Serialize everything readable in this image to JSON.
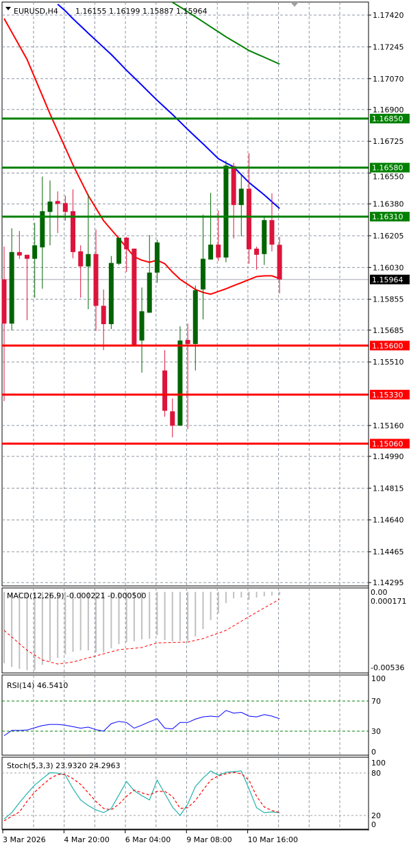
{
  "header": {
    "symbol": "EURUSD,H4",
    "ohlc": "1.16155 1.16199 1.15887 1.15964"
  },
  "colors": {
    "bull": "#006400",
    "bear": "#dc143c",
    "ma_red": "#ff0000",
    "ma_blue": "#0000ff",
    "ma_green": "#008000",
    "resistance": "#008000",
    "support": "#ff0000",
    "rsi": "#0000ff",
    "stoch_main": "#20b2aa",
    "stoch_signal": "#ff0000",
    "macd_hist": "#c0c0c0",
    "grid": "#8c96a0"
  },
  "chart_data": [
    {
      "type": "candlestick",
      "title": "EURUSD,H4",
      "ylim": [
        1.14277,
        1.17503
      ],
      "grid": true,
      "price_ticks": [
        "1.17420",
        "1.17245",
        "1.17070",
        "1.16900",
        "1.16725",
        "1.16550",
        "1.16380",
        "1.16205",
        "1.16030",
        "1.15855",
        "1.15685",
        "1.15510",
        "1.15160",
        "1.14990",
        "1.14815",
        "1.14640",
        "1.14465",
        "1.14295"
      ],
      "current_price": "1.15964",
      "levels": [
        {
          "value": "1.16850",
          "kind": "resistance"
        },
        {
          "value": "1.16580",
          "kind": "resistance"
        },
        {
          "value": "1.16310",
          "kind": "resistance"
        },
        {
          "value": "1.15600",
          "kind": "support"
        },
        {
          "value": "1.15330",
          "kind": "support"
        },
        {
          "value": "1.15060",
          "kind": "support"
        }
      ],
      "time_labels": [
        "3 Mar 2026",
        "4 Mar 20:00",
        "6 Mar 04:00",
        "9 Mar 08:00",
        "10 Mar 16:00"
      ],
      "candles": [
        [
          1.15965,
          1.16145,
          1.15294,
          1.15721
        ],
        [
          1.15721,
          1.16246,
          1.15684,
          1.16115
        ],
        [
          1.16115,
          1.16231,
          1.16078,
          1.16096
        ],
        [
          1.161,
          1.161,
          1.1574,
          1.16078
        ],
        [
          1.16078,
          1.16276,
          1.15864,
          1.16152
        ],
        [
          1.16141,
          1.16531,
          1.15913,
          1.1634
        ],
        [
          1.16336,
          1.16509,
          1.16152,
          1.16393
        ],
        [
          1.16396,
          1.16449,
          1.1622,
          1.16381
        ],
        [
          1.16385,
          1.16426,
          1.16288,
          1.16336
        ],
        [
          1.1634,
          1.1646,
          1.16081,
          1.16115
        ],
        [
          1.16119,
          1.16152,
          1.15864,
          1.16036
        ],
        [
          1.16036,
          1.16434,
          1.158,
          1.16104
        ],
        [
          1.16104,
          1.16239,
          1.1568,
          1.15819
        ],
        [
          1.15819,
          1.15909,
          1.15575,
          1.15718
        ],
        [
          1.15718,
          1.16093,
          1.15691,
          1.16055
        ],
        [
          1.16051,
          1.16194,
          1.16044,
          1.16194
        ],
        [
          1.16194,
          1.16198,
          1.16006,
          1.1613
        ],
        [
          1.16134,
          1.16134,
          1.15594,
          1.15601
        ],
        [
          1.15628,
          1.1592,
          1.15451,
          1.15789
        ],
        [
          1.15781,
          1.16209,
          1.15781,
          1.16002
        ],
        [
          1.16002,
          1.16183,
          1.15946,
          1.16168
        ],
        [
          1.15463,
          1.15575,
          1.15208,
          1.15241
        ],
        [
          1.15238,
          1.15309,
          1.15095,
          1.15159
        ],
        [
          1.15159,
          1.15706,
          1.15159,
          1.15628
        ],
        [
          1.15631,
          1.15721,
          1.1514,
          1.15609
        ],
        [
          1.15609,
          1.15931,
          1.15463,
          1.15905
        ],
        [
          1.15909,
          1.16321,
          1.15744,
          1.16078
        ],
        [
          1.16074,
          1.16441,
          1.16074,
          1.16156
        ],
        [
          1.16156,
          1.16344,
          1.16066,
          1.16085
        ],
        [
          1.16085,
          1.16618,
          1.16059,
          1.16591
        ],
        [
          1.16588,
          1.16606,
          1.1619,
          1.16374
        ],
        [
          1.16374,
          1.16539,
          1.16201,
          1.16464
        ],
        [
          1.16464,
          1.16659,
          1.16051,
          1.1613
        ],
        [
          1.16134,
          1.16145,
          1.16018,
          1.161
        ],
        [
          1.16104,
          1.16306,
          1.16044,
          1.16291
        ],
        [
          1.16291,
          1.16438,
          1.16119,
          1.16156
        ],
        [
          1.16155,
          1.16199,
          1.15887,
          1.15964
        ]
      ],
      "moving_averages": [
        {
          "color": "#ff0000",
          "values": [
            1.17401,
            1.17326,
            1.17251,
            1.17176,
            1.17076,
            1.16976,
            1.16876,
            1.16782,
            1.16689,
            1.16595,
            1.1651,
            1.16426,
            1.16357,
            1.16288,
            1.16239,
            1.1619,
            1.1614,
            1.16089,
            1.1607,
            1.16059,
            1.1607,
            1.16051,
            1.16005,
            1.15965,
            1.15937,
            1.15909,
            1.15893,
            1.15883,
            1.15898,
            1.15913,
            1.1593,
            1.15946,
            1.15963,
            1.1598,
            1.15984,
            1.15984,
            1.15969
          ]
        },
        {
          "color": "#0000ff",
          "values": [
            null,
            null,
            null,
            null,
            null,
            null,
            null,
            1.1748,
            1.17443,
            1.174,
            1.1736,
            1.1732,
            1.17281,
            1.17242,
            1.17203,
            1.1716,
            1.17116,
            1.17075,
            1.17034,
            1.16992,
            1.16951,
            1.16912,
            1.16873,
            1.16832,
            1.1679,
            1.1675,
            1.16711,
            1.1667,
            1.16629,
            1.16606,
            1.16584,
            1.16541,
            1.16498,
            1.16464,
            1.1643,
            1.16392,
            1.16355
          ]
        },
        {
          "color": "#008000",
          "values": [
            null,
            null,
            null,
            null,
            null,
            null,
            null,
            null,
            null,
            null,
            null,
            null,
            null,
            null,
            null,
            null,
            null,
            null,
            null,
            null,
            null,
            null,
            1.1749,
            1.17465,
            1.17438,
            1.1741,
            1.17383,
            1.17355,
            1.17328,
            1.173,
            1.17275,
            1.1725,
            1.17225,
            1.17206,
            1.17188,
            1.17169,
            1.1715
          ]
        }
      ]
    },
    {
      "type": "bar",
      "label": "MACD(12,26,9) -0.000221 -0.000500",
      "ylim": [
        -0.00536,
        0.000171
      ],
      "axis_labels": [
        "0.00",
        "0.000171",
        "-0.00536"
      ],
      "histogram": [
        -0.00489,
        -0.00513,
        -0.00527,
        -0.00536,
        -0.00536,
        -0.00499,
        -0.00475,
        -0.00452,
        -0.00428,
        -0.0041,
        -0.004,
        -0.004,
        -0.00414,
        -0.00414,
        -0.00386,
        -0.00358,
        -0.00344,
        -0.00339,
        -0.00325,
        -0.00321,
        -0.00297,
        -0.0033,
        -0.00339,
        -0.00335,
        -0.00335,
        -0.00306,
        -0.00255,
        -0.00194,
        -0.00147,
        -0.00077,
        -0.00044,
        -0.00039,
        -0.00053,
        -0.00039,
        -0.0003,
        -0.00025,
        -0.000221
      ],
      "signal": [
        -0.00264,
        -0.00309,
        -0.00355,
        -0.004,
        -0.00433,
        -0.00466,
        -0.0048,
        -0.00494,
        -0.00487,
        -0.0048,
        -0.00466,
        -0.00452,
        -0.00438,
        -0.00424,
        -0.0041,
        -0.00396,
        -0.00391,
        -0.00386,
        -0.00381,
        -0.00365,
        -0.00349,
        -0.00348,
        -0.00347,
        -0.00345,
        -0.00344,
        -0.00332,
        -0.0032,
        -0.00301,
        -0.00283,
        -0.00264,
        -0.00233,
        -0.00201,
        -0.0017,
        -0.0014,
        -0.0011,
        -0.0008,
        -0.0005
      ]
    },
    {
      "type": "line",
      "label": "RSI(14) 46.5410",
      "ylim": [
        0,
        100
      ],
      "axis_labels": [
        "100",
        "70",
        "30",
        "0"
      ],
      "levels": [
        70,
        30
      ],
      "values": [
        24,
        31,
        31,
        31.5,
        34.5,
        37.5,
        39,
        39,
        38,
        36,
        34,
        35.5,
        32,
        30,
        40,
        43,
        41.5,
        34,
        38,
        42.5,
        46.5,
        34,
        33,
        41.5,
        41.5,
        46,
        49,
        50,
        49,
        57.5,
        54,
        55,
        50,
        49,
        52,
        50,
        46.54
      ]
    },
    {
      "type": "line",
      "label": "Stoch(5,3,3) 23.9320 24.2963",
      "ylim": [
        0,
        100
      ],
      "axis_labels": [
        "100",
        "80",
        "20",
        "0"
      ],
      "levels": [
        80,
        20
      ],
      "main": [
        15,
        24,
        38,
        51,
        63,
        72,
        80.5,
        80,
        77,
        58,
        42,
        34,
        28,
        24,
        30,
        49,
        68,
        55,
        48,
        42,
        70,
        51,
        32,
        20,
        36,
        61,
        73,
        83,
        77,
        81,
        82,
        83,
        58,
        31,
        24,
        25,
        23.93
      ],
      "signal": [
        12.5,
        19,
        25,
        40,
        53,
        63,
        72,
        78,
        78,
        72,
        64,
        52,
        40,
        30,
        28,
        36,
        47,
        56,
        52,
        49,
        54,
        54,
        47,
        30,
        31,
        41,
        56,
        70,
        76,
        79,
        81,
        79,
        70,
        47,
        32,
        27,
        24.3
      ]
    }
  ]
}
